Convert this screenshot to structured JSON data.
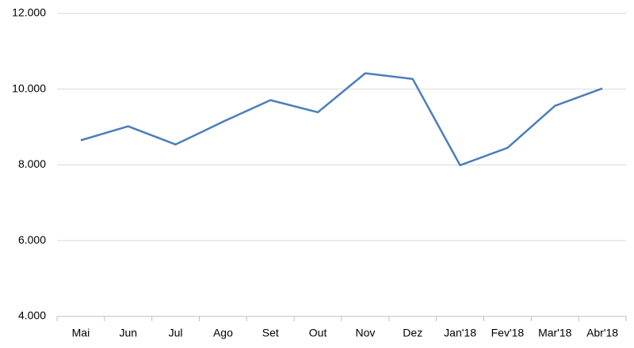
{
  "chart_data": {
    "type": "line",
    "categories": [
      "Mai",
      "Jun",
      "Jul",
      "Ago",
      "Set",
      "Out",
      "Nov",
      "Dez",
      "Jan'18",
      "Fev'18",
      "Mar'18",
      "Abr'18"
    ],
    "series": [
      {
        "color": "#4a7ebb",
        "values": [
          8650,
          9020,
          8540,
          9140,
          9710,
          9390,
          10420,
          10270,
          7990,
          8450,
          9560,
          10020
        ]
      }
    ],
    "ylim": [
      4000,
      12000
    ],
    "yticks": [
      {
        "value": 4000,
        "label": "4.000"
      },
      {
        "value": 6000,
        "label": "6.000"
      },
      {
        "value": 8000,
        "label": "8.000"
      },
      {
        "value": 10000,
        "label": "10.000"
      },
      {
        "value": 12000,
        "label": "12.000"
      }
    ],
    "grid": true
  }
}
